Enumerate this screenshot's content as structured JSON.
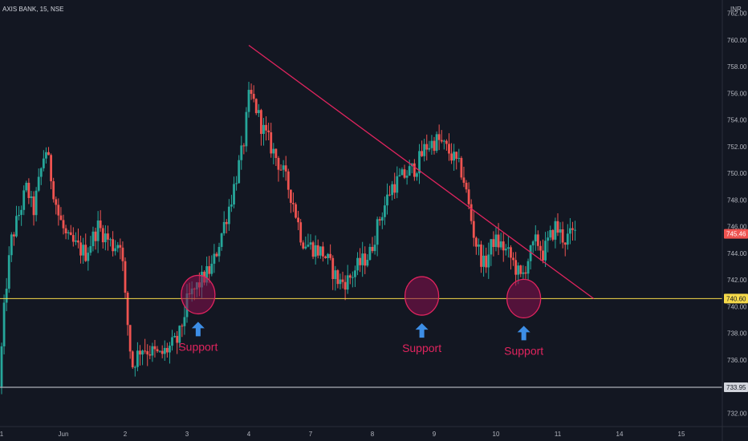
{
  "chart_data": {
    "type": "candlestick",
    "title": "AXIS BANK, 15, NSE",
    "currency": "INR",
    "ylim": [
      731,
      763
    ],
    "y_ticks": [
      762,
      760,
      758,
      756,
      754,
      752,
      750,
      748,
      746,
      744,
      742,
      740,
      738,
      736,
      734,
      732
    ],
    "y_tick_labels": [
      "762.00",
      "760.00",
      "758.00",
      "756.00",
      "754.00",
      "752.00",
      "750.00",
      "748.00",
      "746.00",
      "744.00",
      "742.00",
      "740.00",
      "738.00",
      "736.00",
      "734.00",
      "732.00"
    ],
    "x_labels": [
      "1",
      "Jun",
      "2",
      "3",
      "4",
      "7",
      "8",
      "9",
      "10",
      "11",
      "14",
      "15"
    ],
    "x_label_index": [
      0,
      10,
      20,
      30,
      40,
      50,
      60,
      70,
      80,
      90,
      100,
      110
    ],
    "bars_per_session": 25,
    "price_tags": [
      {
        "label": "745.46",
        "value": 745.46,
        "color": "#ef5350"
      },
      {
        "label": "740.60",
        "value": 740.6,
        "color": "#f5d94a"
      },
      {
        "label": "733.95",
        "value": 733.95,
        "color": "#d1d4dc"
      }
    ],
    "horizontal_lines": [
      {
        "value": 740.6,
        "color": "#f5d94a"
      },
      {
        "value": 733.95,
        "color": "#d1d4dc"
      }
    ],
    "trendline": {
      "from": [
        4.0,
        759.6
      ],
      "to": [
        9.58,
        740.6
      ],
      "color": "#e0245e"
    },
    "annotations": [
      {
        "text": "Support",
        "x": 3.18,
        "y": 740.9
      },
      {
        "text": "Support",
        "x": 6.8,
        "y": 740.8
      },
      {
        "text": "Support",
        "x": 8.45,
        "y": 740.6
      }
    ],
    "path_x": [
      0,
      0.1,
      0.2,
      0.45,
      0.55,
      0.75,
      0.95,
      1.1,
      1.4,
      1.6,
      1.85,
      1.97,
      2.05,
      2.15,
      2.3,
      2.6,
      2.9,
      3.05,
      3.25,
      3.45,
      3.6,
      3.75,
      3.95,
      4.05,
      4.15,
      4.25,
      4.4,
      4.6,
      4.75,
      4.9,
      5.05,
      5.25,
      5.5,
      5.65,
      5.8,
      6.0,
      6.15,
      6.35,
      6.6,
      6.75,
      6.9,
      7.1,
      7.3,
      7.5,
      7.7,
      7.85,
      8.0,
      8.15,
      8.3,
      8.45,
      8.55,
      8.7,
      8.8,
      9.0,
      9.15,
      9.3
    ],
    "path_y": [
      734,
      741,
      745,
      749,
      747,
      752,
      747,
      745,
      744,
      746,
      744.5,
      745,
      740,
      735.5,
      737,
      736.3,
      737.5,
      740.5,
      741.8,
      743,
      745.5,
      748,
      752,
      756,
      755,
      753.5,
      752,
      750,
      748,
      745,
      744.5,
      744,
      741.8,
      742,
      743,
      744,
      746.5,
      749,
      750,
      750.5,
      752,
      752.5,
      751.5,
      750,
      745,
      743,
      745,
      744.5,
      743.5,
      742,
      743.5,
      745,
      744,
      746,
      745,
      745.5
    ]
  }
}
